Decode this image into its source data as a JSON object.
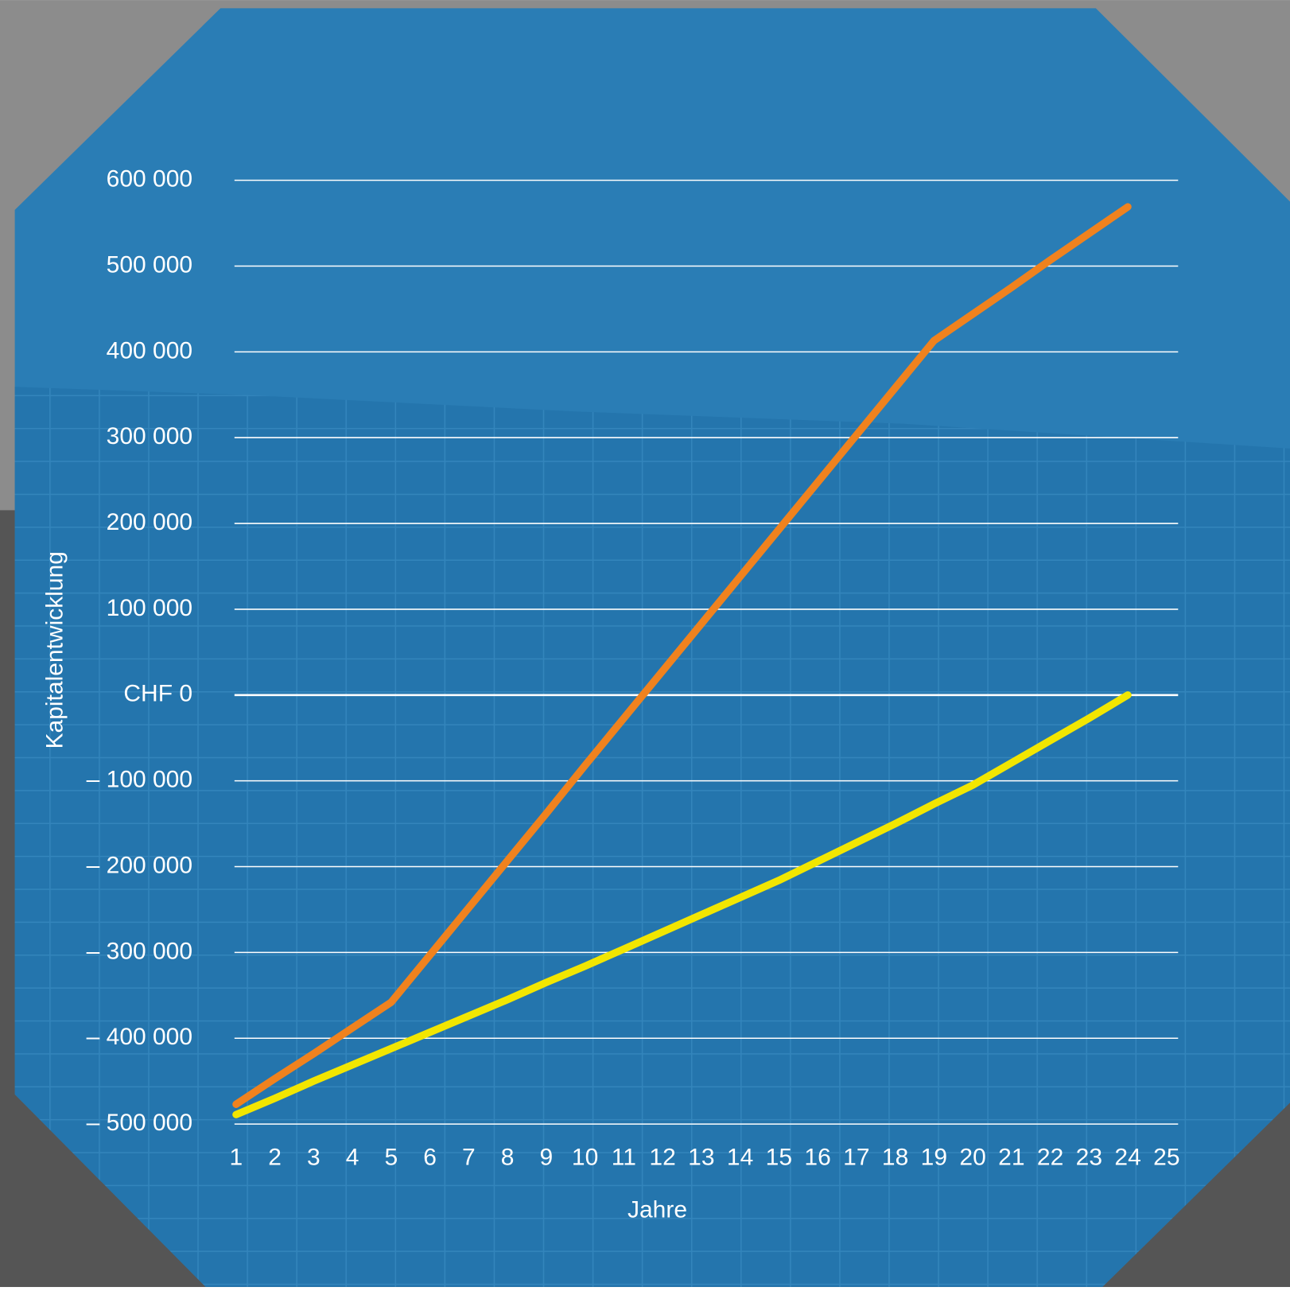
{
  "chart_data": {
    "type": "line",
    "x_label": "Jahre",
    "y_label": "Kapitalentwicklung",
    "x": [
      1,
      2,
      3,
      4,
      5,
      6,
      7,
      8,
      9,
      10,
      11,
      12,
      13,
      14,
      15,
      16,
      17,
      18,
      19,
      20,
      21,
      22,
      23,
      24,
      25
    ],
    "xlim": [
      1,
      25
    ],
    "xticks": [
      1,
      2,
      3,
      4,
      5,
      6,
      7,
      8,
      9,
      10,
      11,
      12,
      13,
      14,
      15,
      16,
      17,
      18,
      19,
      20,
      21,
      22,
      23,
      24,
      25
    ],
    "ylim": [
      -500000,
      600000
    ],
    "yticks": [
      {
        "value": -500000,
        "label": "– 500 000"
      },
      {
        "value": -400000,
        "label": "– 400 000"
      },
      {
        "value": -300000,
        "label": "– 300 000"
      },
      {
        "value": -200000,
        "label": "– 200 000"
      },
      {
        "value": -100000,
        "label": "– 100 000"
      },
      {
        "value": 0,
        "label": "CHF 0"
      },
      {
        "value": 100000,
        "label": "100 000"
      },
      {
        "value": 200000,
        "label": "200 000"
      },
      {
        "value": 300000,
        "label": "300 000"
      },
      {
        "value": 400000,
        "label": "400 000"
      },
      {
        "value": 500000,
        "label": "500 000"
      },
      {
        "value": 600000,
        "label": "600 000"
      }
    ],
    "grid": true,
    "series": [
      {
        "color": "#f0821e",
        "values": [
          -477000,
          -447000,
          -418000,
          -388000,
          -358000,
          -303000,
          -248000,
          -193000,
          -138000,
          -82000,
          -27000,
          28000,
          83000,
          138000,
          193000,
          248000,
          303000,
          358000,
          413000,
          444000,
          475000,
          507000,
          538000,
          569000,
          null
        ]
      },
      {
        "color": "#f2e600",
        "values": [
          -489000,
          -470000,
          -450000,
          -431000,
          -412000,
          -393000,
          -374000,
          -355000,
          -335000,
          -316000,
          -296000,
          -276000,
          -256000,
          -236000,
          -216000,
          -194000,
          -172000,
          -150000,
          -127000,
          -105000,
          -79000,
          -53000,
          -27000,
          0,
          null
        ]
      }
    ]
  }
}
